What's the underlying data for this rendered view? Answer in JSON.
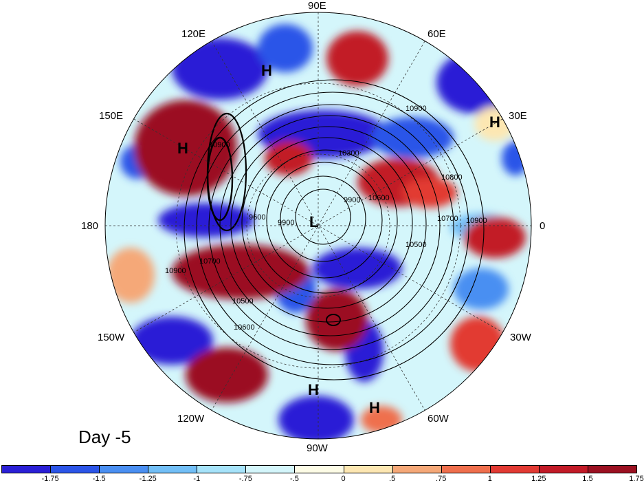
{
  "title": "Day -5",
  "longitude_labels": [
    "90E",
    "60E",
    "30E",
    "0",
    "30W",
    "60W",
    "90W",
    "120W",
    "150W",
    "180",
    "150E",
    "120E"
  ],
  "pressure_centers": [
    {
      "type": "H",
      "label": "H"
    },
    {
      "type": "H",
      "label": "H"
    },
    {
      "type": "H",
      "label": "H"
    },
    {
      "type": "L",
      "label": "L"
    },
    {
      "type": "H",
      "label": "H"
    },
    {
      "type": "H",
      "label": "H"
    }
  ],
  "contour_labels": [
    "10900",
    "10900",
    "10800",
    "10700",
    "10600",
    "10500",
    "10300",
    "10900",
    "10700",
    "10600",
    "10500",
    "10900",
    "9900",
    "9600",
    "9900"
  ],
  "colorbar": {
    "colors": [
      "#2a1fd6",
      "#2b55e8",
      "#4a8ff2",
      "#72bff7",
      "#a6e3fa",
      "#d4f6fb",
      "#fdfce6",
      "#fde7b2",
      "#f5a878",
      "#ef6f4d",
      "#e23a33",
      "#c21a27",
      "#9b1021"
    ],
    "tick_labels": [
      "-1.75",
      "-1.5",
      "-1.25",
      "-1",
      "-.75",
      "-.5",
      "0",
      ".5",
      ".75",
      "1",
      "1.25",
      "1.5",
      "1.75"
    ]
  }
}
